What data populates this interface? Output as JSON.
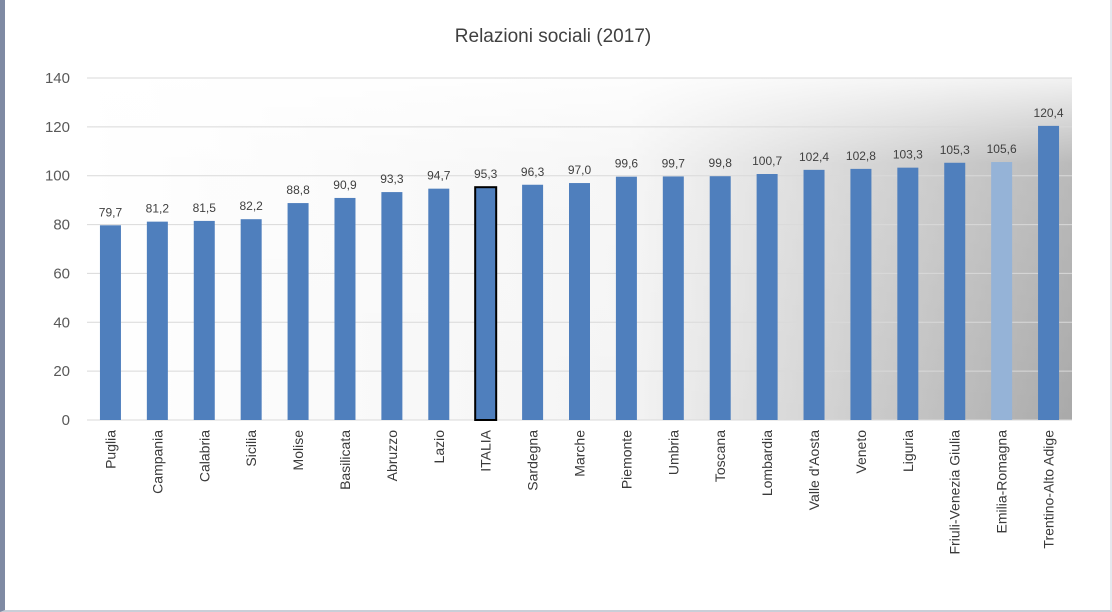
{
  "chart_data": {
    "type": "bar",
    "title": "Relazioni sociali (2017)",
    "xlabel": "",
    "ylabel": "",
    "ylim": [
      0,
      140
    ],
    "yticks": [
      0,
      20,
      40,
      60,
      80,
      100,
      120,
      140
    ],
    "grid": true,
    "categories": [
      "Puglia",
      "Campania",
      "Calabria",
      "Sicilia",
      "Molise",
      "Basilicata",
      "Abruzzo",
      "Lazio",
      "ITALIA",
      "Sardegna",
      "Marche",
      "Piemonte",
      "Umbria",
      "Toscana",
      "Lombardia",
      "Valle d'Aosta",
      "Veneto",
      "Liguria",
      "Friuli-Venezia Giulia",
      "Emilia-Romagna",
      "Trentino-Alto Adige"
    ],
    "values": [
      79.7,
      81.2,
      81.5,
      82.2,
      88.8,
      90.9,
      93.3,
      94.7,
      95.3,
      96.3,
      97.0,
      99.6,
      99.7,
      99.8,
      100.7,
      102.4,
      102.8,
      103.3,
      105.3,
      105.6,
      120.4
    ],
    "data_labels": [
      "79,7",
      "81,2",
      "81,5",
      "82,2",
      "88,8",
      "90,9",
      "93,3",
      "94,7",
      "95,3",
      "96,3",
      "97,0",
      "99,6",
      "99,7",
      "99,8",
      "100,7",
      "102,4",
      "102,8",
      "103,3",
      "105,3",
      "105,6",
      "120,4"
    ],
    "colors": {
      "bar": "#4f7fbd",
      "highlight_italia_outline": "#000000",
      "highlight_emilia": "#95b3d7",
      "grid": "#d9d9d9"
    }
  }
}
